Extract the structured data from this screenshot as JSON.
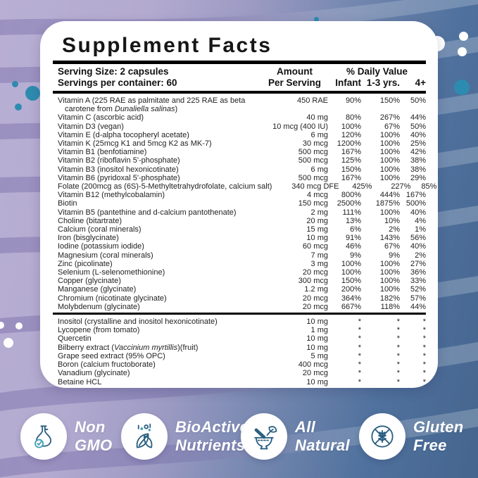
{
  "label": {
    "title": "Supplement Facts",
    "serving_size": "Serving Size: 2 capsules",
    "servings_per_container": "Servings per container: 60",
    "columns": {
      "amount_line1": "Amount",
      "amount_line2": "Per Serving",
      "daily_value": "% Daily Value",
      "age_groups": [
        "Infant",
        "1-3 yrs.",
        "4+"
      ]
    },
    "main_rows": [
      {
        "name": "Vitamin A (225 RAE as palmitate and 225 RAE as beta",
        "name2": "carotene from *Dunaliella salinas*)",
        "amount": "450 RAE",
        "values": [
          "90%",
          "150%",
          "50%"
        ]
      },
      {
        "name": "Vitamin C (ascorbic acid)",
        "amount": "40 mg",
        "values": [
          "80%",
          "267%",
          "44%"
        ]
      },
      {
        "name": "Vitamin D3 (vegan)",
        "amount": "10 mcg (400 IU)",
        "values": [
          "100%",
          "67%",
          "50%"
        ]
      },
      {
        "name": "Vitamin E (d-alpha tocopheryl acetate)",
        "amount": "6 mg",
        "values": [
          "120%",
          "100%",
          "40%"
        ]
      },
      {
        "name": "Vitamin K (25mcg K1 and 5mcg K2 as MK-7)",
        "amount": "30 mcg",
        "values": [
          "1200%",
          "100%",
          "25%"
        ]
      },
      {
        "name": "Vitamin B1 (benfotiamine)",
        "amount": "500 mcg",
        "values": [
          "167%",
          "100%",
          "42%"
        ]
      },
      {
        "name": "Vitamin B2 (riboflavin 5'-phosphate)",
        "amount": "500 mcg",
        "values": [
          "125%",
          "100%",
          "38%"
        ]
      },
      {
        "name": "Vitamin B3 (inositol hexonicotinate)",
        "amount": "6 mg",
        "values": [
          "150%",
          "100%",
          "38%"
        ]
      },
      {
        "name": "Vitamin B6 (pyridoxal 5'-phosphate)",
        "amount": "500 mcg",
        "values": [
          "167%",
          "100%",
          "29%"
        ]
      },
      {
        "name": "Folate (200mcg as (6S)-5-Methyltetrahydrofolate, calcium salt)",
        "amount": "340 mcg DFE",
        "values": [
          "425%",
          "227%",
          "85%"
        ]
      },
      {
        "name": "Vitamin B12 (methylcobalamin)",
        "amount": "4 mcg",
        "values": [
          "800%",
          "444%",
          "167%"
        ]
      },
      {
        "name": "Biotin",
        "amount": "150 mcg",
        "values": [
          "2500%",
          "1875%",
          "500%"
        ]
      },
      {
        "name": "Vitamin B5 (pantethine and d-calcium pantothenate)",
        "amount": "2 mg",
        "values": [
          "111%",
          "100%",
          "40%"
        ]
      },
      {
        "name": "Choline (bitartrate)",
        "amount": "20 mg",
        "values": [
          "13%",
          "10%",
          "4%"
        ]
      },
      {
        "name": "Calcium (coral minerals)",
        "amount": "15 mg",
        "values": [
          "6%",
          "2%",
          "1%"
        ]
      },
      {
        "name": "Iron (bisglycinate)",
        "amount": "10 mg",
        "values": [
          "91%",
          "143%",
          "56%"
        ]
      },
      {
        "name": "Iodine (potassium iodide)",
        "amount": "60 mcg",
        "values": [
          "46%",
          "67%",
          "40%"
        ]
      },
      {
        "name": "Magnesium (coral minerals)",
        "amount": "7 mg",
        "values": [
          "9%",
          "9%",
          "2%"
        ]
      },
      {
        "name": "Zinc (picolinate)",
        "amount": "3 mg",
        "values": [
          "100%",
          "100%",
          "27%"
        ]
      },
      {
        "name": "Selenium (L-selenomethionine)",
        "amount": "20 mcg",
        "values": [
          "100%",
          "100%",
          "36%"
        ]
      },
      {
        "name": "Copper (glycinate)",
        "amount": "300 mcg",
        "values": [
          "150%",
          "100%",
          "33%"
        ]
      },
      {
        "name": "Manganese (glycinate)",
        "amount": "1.2 mg",
        "values": [
          "200%",
          "100%",
          "52%"
        ]
      },
      {
        "name": "Chromium (nicotinate glycinate)",
        "amount": "20 mcg",
        "values": [
          "364%",
          "182%",
          "57%"
        ]
      },
      {
        "name": "Molybdenum (glycinate)",
        "amount": "20 mcg",
        "values": [
          "667%",
          "118%",
          "44%"
        ]
      }
    ],
    "other_rows": [
      {
        "name": "Inositol (crystalline and inositol hexonicotinate)",
        "amount": "10 mg",
        "values": [
          "*",
          "*",
          "*"
        ]
      },
      {
        "name": "Lycopene (from tomato)",
        "amount": "1 mg",
        "values": [
          "*",
          "*",
          "*"
        ]
      },
      {
        "name": "Quercetin",
        "amount": "10 mg",
        "values": [
          "*",
          "*",
          "*"
        ]
      },
      {
        "name": "Bilberry extract (*Vaccinium myrtillis*)(fruit)",
        "amount": "10 mg",
        "values": [
          "*",
          "*",
          "*"
        ]
      },
      {
        "name": "Grape seed extract (95% OPC)",
        "amount": "5 mg",
        "values": [
          "*",
          "*",
          "*"
        ]
      },
      {
        "name": "Boron (calcium fructoborate)",
        "amount": "400 mcg",
        "values": [
          "*",
          "*",
          "*"
        ]
      },
      {
        "name": "Vanadium (glycinate)",
        "amount": "20 mcg",
        "values": [
          "*",
          "*",
          "*"
        ]
      },
      {
        "name": "Betaine HCL",
        "amount": "10 mg",
        "values": [
          "*",
          "*",
          "*"
        ]
      }
    ]
  },
  "badges": [
    {
      "icon": "flask-check-icon",
      "lines": [
        "Non",
        "GMO"
      ]
    },
    {
      "icon": "leaves-nutrients-icon",
      "lines": [
        "BioActive",
        "Nutrients"
      ]
    },
    {
      "icon": "mortar-pestle-icon",
      "lines": [
        "All",
        "Natural"
      ]
    },
    {
      "icon": "gluten-free-icon",
      "lines": [
        "Gluten",
        "Free"
      ]
    }
  ],
  "colors": {
    "bg_left_lavender": "#b3aad0",
    "bg_right_blue": "#4a6c96",
    "dot_teal": "#2e8bb0",
    "badge_icon_stroke": "#2b6080",
    "badge_icon_accent": "#3f9db4"
  }
}
